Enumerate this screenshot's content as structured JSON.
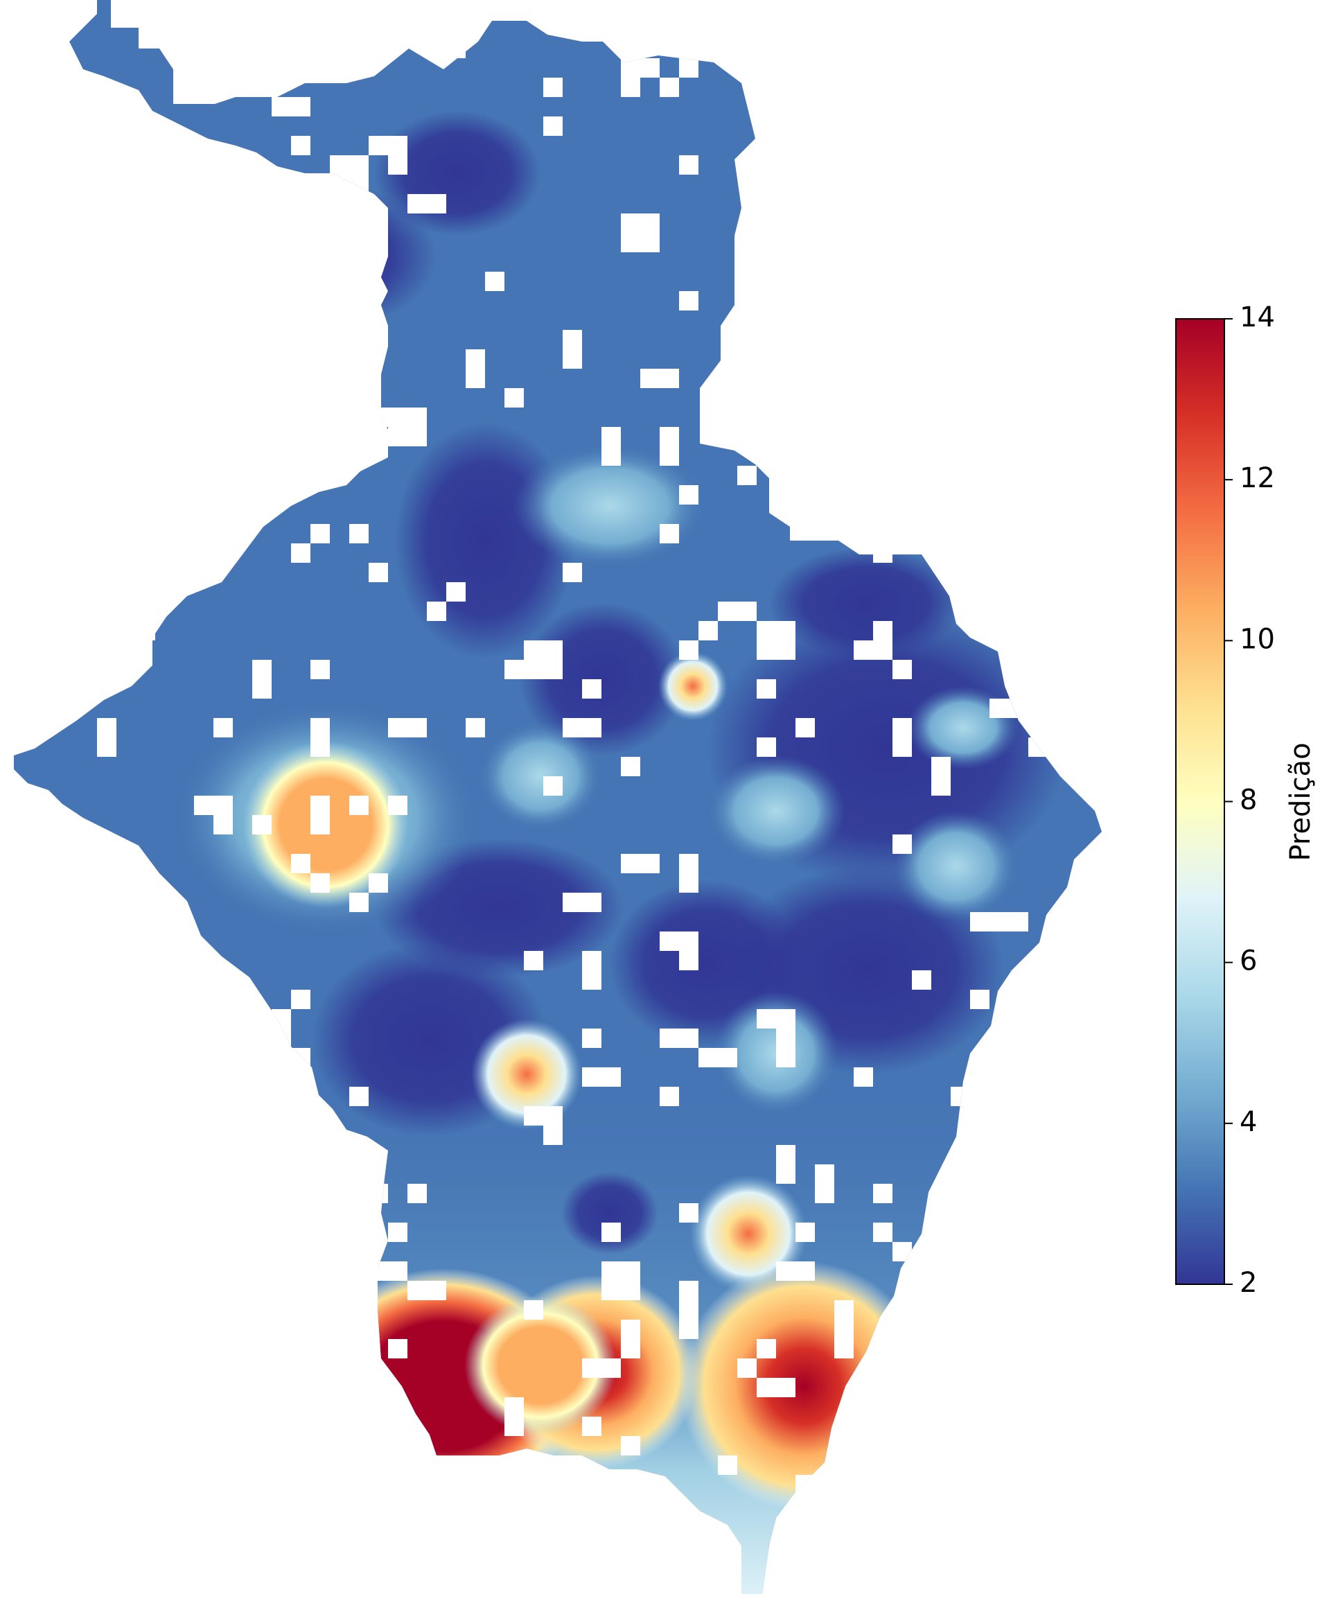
{
  "map": {
    "type": "interpolated raster map (Viridis-free RdYlBu_r colormap)",
    "colormap": [
      "#313695",
      "#4575b4",
      "#74add1",
      "#abd9e9",
      "#e0f3f8",
      "#ffffbf",
      "#fee090",
      "#fdae61",
      "#f46d43",
      "#d73027",
      "#a50026"
    ],
    "value_range": [
      2,
      14
    ]
  },
  "colorbar": {
    "label": "Predição",
    "ticks": [
      "2",
      "4",
      "6",
      "8",
      "10",
      "12",
      "14"
    ],
    "tick_values": [
      2,
      4,
      6,
      8,
      10,
      12,
      14
    ]
  }
}
